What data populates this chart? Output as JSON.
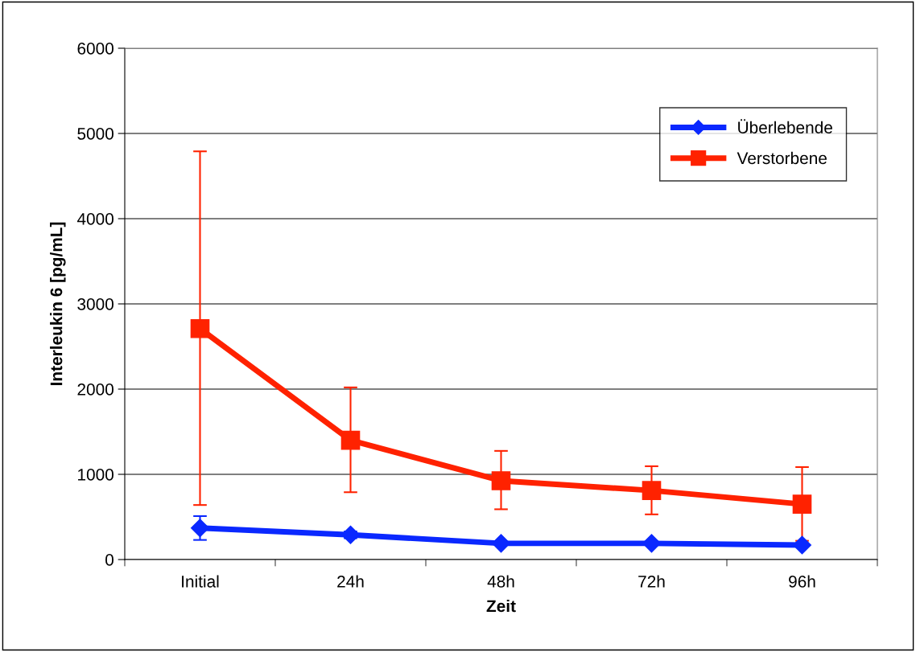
{
  "chart_data": {
    "type": "line",
    "xlabel": "Zeit",
    "ylabel": "Interleukin 6 [pg/mL]",
    "categories": [
      "Initial",
      "24h",
      "48h",
      "72h",
      "96h"
    ],
    "series": [
      {
        "name": "Überlebende",
        "color": "#0a28ff",
        "marker": "diamond",
        "values": [
          370,
          290,
          190,
          190,
          170
        ],
        "errors": [
          140,
          40,
          null,
          null,
          null
        ]
      },
      {
        "name": "Verstorbene",
        "color": "#ff2200",
        "marker": "square",
        "values": [
          2710,
          1400,
          925,
          810,
          650
        ],
        "errors": [
          [
            640,
            4790
          ],
          [
            790,
            2020
          ],
          [
            590,
            1275
          ],
          [
            530,
            1095
          ],
          [
            220,
            1085
          ]
        ]
      }
    ],
    "ylim": [
      0,
      6000
    ],
    "yticks": [
      0,
      1000,
      2000,
      3000,
      4000,
      5000,
      6000
    ],
    "grid": "y",
    "legend": "top right",
    "line_style": "solid"
  }
}
